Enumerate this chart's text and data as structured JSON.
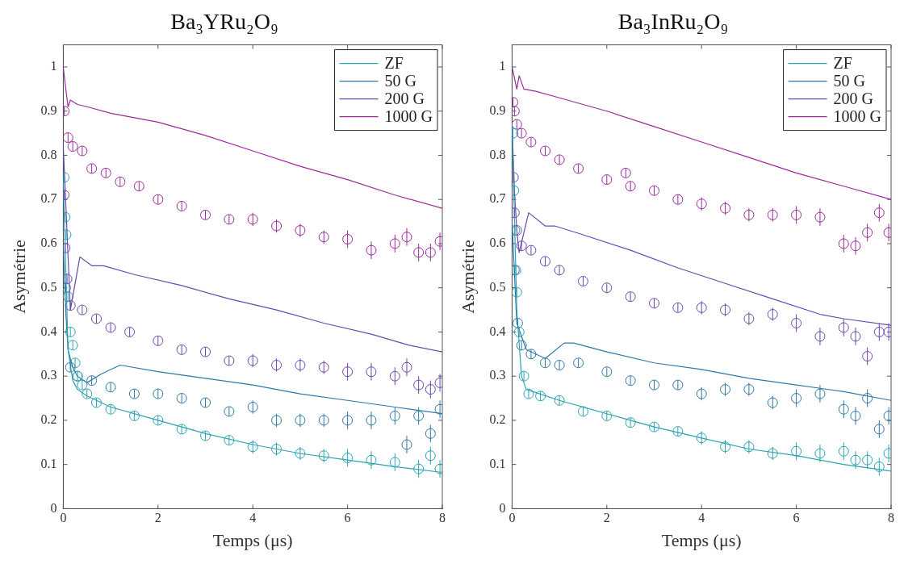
{
  "chart_data": [
    {
      "type": "line",
      "title": "Ba₃YRu₂O₉",
      "xlabel": "Temps (μs)",
      "ylabel": "Asymétrie",
      "xlim": [
        0,
        8
      ],
      "xticks": [
        0,
        2,
        4,
        6,
        8
      ],
      "ylim": [
        0,
        1.05
      ],
      "yticks": [
        0,
        0.1,
        0.2,
        0.3,
        0.4,
        0.5,
        0.6,
        0.7,
        0.8,
        0.9,
        1
      ],
      "grid": false,
      "legend": "top right",
      "series": [
        {
          "name": "ZF",
          "type": "line",
          "marker": "none",
          "color": "#2aa3b3",
          "x": [
            0,
            0.1,
            0.2,
            0.3,
            0.5,
            1,
            2,
            3,
            4,
            5,
            6,
            7,
            8
          ],
          "values": [
            0.75,
            0.36,
            0.29,
            0.27,
            0.255,
            0.23,
            0.2,
            0.17,
            0.145,
            0.125,
            0.11,
            0.095,
            0.082
          ]
        },
        {
          "name": "50 G",
          "type": "line",
          "marker": "none",
          "color": "#2f78a8",
          "x": [
            0,
            0.05,
            0.1,
            0.2,
            0.3,
            0.5,
            0.8,
            1.2,
            2,
            3,
            4,
            5,
            6,
            7,
            8
          ],
          "values": [
            0.6,
            0.45,
            0.36,
            0.32,
            0.3,
            0.285,
            0.305,
            0.325,
            0.31,
            0.295,
            0.28,
            0.26,
            0.245,
            0.23,
            0.215
          ]
        },
        {
          "name": "200 G",
          "type": "line",
          "marker": "none",
          "color": "#6a48b0",
          "x": [
            0,
            0.15,
            0.35,
            0.6,
            0.85,
            1.5,
            2.5,
            3.5,
            4.5,
            5.5,
            6.5,
            7.3,
            8
          ],
          "values": [
            0.82,
            0.45,
            0.57,
            0.55,
            0.55,
            0.53,
            0.505,
            0.475,
            0.45,
            0.42,
            0.395,
            0.37,
            0.355
          ]
        },
        {
          "name": "1000 G",
          "type": "line",
          "marker": "none",
          "color": "#9b2a9e",
          "x": [
            0,
            0.03,
            0.1,
            0.15,
            0.3,
            0.5,
            1,
            2,
            3,
            4,
            5,
            6,
            7,
            8
          ],
          "values": [
            1.0,
            0.97,
            0.91,
            0.925,
            0.915,
            0.91,
            0.895,
            0.875,
            0.845,
            0.81,
            0.775,
            0.745,
            0.71,
            0.68
          ]
        },
        {
          "type": "scatter",
          "marker": "circle",
          "color": "#2aa3b3",
          "x": [
            0.02,
            0.04,
            0.06,
            0.1,
            0.15,
            0.2,
            0.25,
            0.3,
            0.4,
            0.5,
            0.7,
            1,
            1.5,
            2,
            2.5,
            3,
            3.5,
            4,
            4.5,
            5,
            5.5,
            6,
            6.5,
            7,
            7.5,
            7.75,
            7.95
          ],
          "values": [
            0.75,
            0.66,
            0.62,
            0.48,
            0.4,
            0.37,
            0.33,
            0.3,
            0.28,
            0.26,
            0.24,
            0.225,
            0.21,
            0.2,
            0.18,
            0.165,
            0.155,
            0.14,
            0.135,
            0.125,
            0.12,
            0.115,
            0.11,
            0.105,
            0.09,
            0.12,
            0.09
          ],
          "errors": [
            0.01,
            0.01,
            0.01,
            0.01,
            0.01,
            0.01,
            0.01,
            0.01,
            0.01,
            0.01,
            0.01,
            0.01,
            0.01,
            0.01,
            0.01,
            0.01,
            0.01,
            0.015,
            0.015,
            0.015,
            0.015,
            0.02,
            0.02,
            0.02,
            0.02,
            0.02,
            0.02
          ]
        },
        {
          "type": "scatter",
          "marker": "circle",
          "color": "#2f78a8",
          "x": [
            0.05,
            0.15,
            0.3,
            0.6,
            1,
            1.5,
            2,
            2.5,
            3,
            3.5,
            4,
            4.5,
            5,
            5.5,
            6,
            6.5,
            7,
            7.25,
            7.5,
            7.75,
            7.95
          ],
          "values": [
            0.5,
            0.32,
            0.3,
            0.29,
            0.275,
            0.26,
            0.26,
            0.25,
            0.24,
            0.22,
            0.23,
            0.2,
            0.2,
            0.2,
            0.2,
            0.2,
            0.21,
            0.145,
            0.21,
            0.17,
            0.225
          ],
          "errors": [
            0.01,
            0.01,
            null,
            0.01,
            0.01,
            0.01,
            0.01,
            0.01,
            0.01,
            0.01,
            0.015,
            0.015,
            0.015,
            0.015,
            0.02,
            0.02,
            0.02,
            0.02,
            0.02,
            0.02,
            0.02
          ]
        },
        {
          "type": "scatter",
          "marker": "circle",
          "color": "#6a48b0",
          "x": [
            0.02,
            0.04,
            0.08,
            0.15,
            0.4,
            0.7,
            1,
            1.4,
            2,
            2.5,
            3,
            3.5,
            4,
            4.5,
            5,
            5.5,
            6,
            6.5,
            7,
            7.25,
            7.5,
            7.75,
            7.95
          ],
          "values": [
            0.71,
            0.59,
            0.52,
            0.46,
            0.45,
            0.43,
            0.41,
            0.4,
            0.38,
            0.36,
            0.355,
            0.335,
            0.335,
            0.325,
            0.325,
            0.32,
            0.31,
            0.31,
            0.3,
            0.32,
            0.28,
            0.27,
            0.285
          ],
          "errors": [
            0.01,
            0.01,
            0.01,
            0.01,
            0.01,
            0.01,
            0.01,
            0.01,
            0.01,
            0.01,
            0.01,
            0.01,
            0.015,
            0.015,
            0.015,
            0.015,
            0.02,
            0.02,
            0.02,
            0.02,
            0.02,
            0.02,
            0.02
          ]
        },
        {
          "type": "scatter",
          "marker": "circle",
          "color": "#9b2a9e",
          "x": [
            0.02,
            0.1,
            0.2,
            0.4,
            0.6,
            0.9,
            1.2,
            1.6,
            2,
            2.5,
            3,
            3.5,
            4,
            4.5,
            5,
            5.5,
            6,
            6.5,
            7,
            7.25,
            7.5,
            7.75,
            7.95
          ],
          "values": [
            0.9,
            0.84,
            0.82,
            0.81,
            0.77,
            0.76,
            0.74,
            0.73,
            0.7,
            0.685,
            0.665,
            0.655,
            0.655,
            0.64,
            0.63,
            0.615,
            0.61,
            0.585,
            0.6,
            0.615,
            0.58,
            0.58,
            0.605
          ],
          "errors": [
            0.01,
            0.01,
            0.01,
            0.01,
            0.01,
            0.01,
            0.01,
            0.01,
            0.01,
            0.01,
            0.01,
            0.01,
            0.015,
            0.015,
            0.015,
            0.015,
            0.02,
            0.02,
            0.02,
            0.02,
            0.02,
            0.02,
            0.02
          ]
        }
      ]
    },
    {
      "type": "line",
      "title": "Ba₃InRu₂O₉",
      "xlabel": "Temps (μs)",
      "ylabel": "Asymétrie",
      "xlim": [
        0,
        8
      ],
      "xticks": [
        0,
        2,
        4,
        6,
        8
      ],
      "ylim": [
        0,
        1.05
      ],
      "yticks": [
        0,
        0.1,
        0.2,
        0.3,
        0.4,
        0.5,
        0.6,
        0.7,
        0.8,
        0.9,
        1
      ],
      "grid": false,
      "legend": "top right",
      "series": [
        {
          "name": "ZF",
          "type": "line",
          "marker": "none",
          "color": "#2aa3b3",
          "x": [
            0,
            0.1,
            0.2,
            0.3,
            1,
            2,
            3,
            4,
            5,
            6,
            7,
            8
          ],
          "values": [
            0.87,
            0.45,
            0.3,
            0.27,
            0.245,
            0.215,
            0.185,
            0.16,
            0.135,
            0.12,
            0.1,
            0.085
          ]
        },
        {
          "name": "50 G",
          "type": "line",
          "marker": "none",
          "color": "#2f78a8",
          "x": [
            0,
            0.1,
            0.3,
            0.7,
            1.1,
            1.3,
            2,
            3,
            4,
            5,
            6,
            7,
            8
          ],
          "values": [
            0.65,
            0.42,
            0.36,
            0.34,
            0.375,
            0.375,
            0.355,
            0.33,
            0.315,
            0.295,
            0.28,
            0.265,
            0.245
          ]
        },
        {
          "name": "200 G",
          "type": "line",
          "marker": "none",
          "color": "#6a48b0",
          "x": [
            0,
            0.05,
            0.1,
            0.15,
            0.35,
            0.7,
            0.9,
            1.5,
            2.5,
            3.5,
            4.5,
            5.5,
            6.5,
            7,
            8
          ],
          "values": [
            0.87,
            0.72,
            0.63,
            0.58,
            0.67,
            0.64,
            0.64,
            0.62,
            0.585,
            0.545,
            0.51,
            0.475,
            0.44,
            0.43,
            0.415
          ]
        },
        {
          "name": "1000 G",
          "type": "line",
          "marker": "none",
          "color": "#9b2a9e",
          "x": [
            0,
            0.1,
            0.15,
            0.25,
            0.5,
            1,
            2,
            3,
            4,
            5,
            6,
            7,
            8
          ],
          "values": [
            1.0,
            0.95,
            0.98,
            0.95,
            0.945,
            0.93,
            0.9,
            0.865,
            0.83,
            0.795,
            0.76,
            0.73,
            0.7
          ]
        },
        {
          "type": "scatter",
          "marker": "circle",
          "color": "#2aa3b3",
          "x": [
            0.02,
            0.04,
            0.06,
            0.08,
            0.1,
            0.15,
            0.25,
            0.35,
            0.6,
            1,
            1.5,
            2,
            2.5,
            3,
            3.5,
            4,
            4.5,
            5,
            5.5,
            6,
            6.5,
            7,
            7.25,
            7.5,
            7.75,
            7.95
          ],
          "values": [
            0.85,
            0.72,
            0.63,
            0.54,
            0.49,
            0.4,
            0.3,
            0.26,
            0.255,
            0.245,
            0.22,
            0.21,
            0.195,
            0.185,
            0.175,
            0.16,
            0.14,
            0.14,
            0.125,
            0.13,
            0.125,
            0.13,
            0.11,
            0.11,
            0.095,
            0.125
          ],
          "errors": [
            0.01,
            0.01,
            0.01,
            0.01,
            0.01,
            0.01,
            0.01,
            0.01,
            0.01,
            0.01,
            0.01,
            0.01,
            0.01,
            0.01,
            0.01,
            0.015,
            0.015,
            0.015,
            0.015,
            0.02,
            0.02,
            0.02,
            0.02,
            0.02,
            0.02,
            0.02
          ]
        },
        {
          "type": "scatter",
          "marker": "circle",
          "color": "#2f78a8",
          "x": [
            0.05,
            0.12,
            0.2,
            0.4,
            0.7,
            1,
            1.4,
            2,
            2.5,
            3,
            3.5,
            4,
            4.5,
            5,
            5.5,
            6,
            6.5,
            7,
            7.25,
            7.5,
            7.75,
            7.95
          ],
          "values": [
            0.54,
            0.42,
            0.37,
            0.35,
            0.33,
            0.325,
            0.33,
            0.31,
            0.29,
            0.28,
            0.28,
            0.26,
            0.27,
            0.27,
            0.24,
            0.25,
            0.26,
            0.225,
            0.21,
            0.25,
            0.18,
            0.21
          ],
          "errors": [
            0.01,
            0.01,
            0.01,
            0.01,
            0.01,
            0.01,
            0.01,
            0.01,
            0.01,
            0.01,
            0.01,
            0.015,
            0.015,
            0.015,
            0.015,
            0.02,
            0.02,
            0.02,
            0.02,
            0.02,
            0.02,
            0.02
          ]
        },
        {
          "type": "scatter",
          "marker": "circle",
          "color": "#6a48b0",
          "x": [
            0.03,
            0.05,
            0.1,
            0.2,
            0.4,
            0.7,
            1,
            1.5,
            2,
            2.5,
            3,
            3.5,
            4,
            4.5,
            5,
            5.5,
            6,
            6.5,
            7,
            7.25,
            7.5,
            7.75,
            7.95
          ],
          "values": [
            0.75,
            0.67,
            0.63,
            0.595,
            0.585,
            0.56,
            0.54,
            0.515,
            0.5,
            0.48,
            0.465,
            0.455,
            0.455,
            0.45,
            0.43,
            0.44,
            0.42,
            0.39,
            0.41,
            0.39,
            0.345,
            0.4,
            0.4
          ],
          "errors": [
            0.01,
            0.01,
            null,
            0.01,
            0.01,
            0.01,
            0.01,
            0.01,
            0.01,
            0.01,
            0.01,
            0.01,
            0.015,
            0.015,
            0.015,
            0.015,
            0.02,
            0.02,
            0.02,
            0.02,
            0.02,
            0.02,
            0.02
          ]
        },
        {
          "type": "scatter",
          "marker": "circle",
          "color": "#9b2a9e",
          "x": [
            0.02,
            0.05,
            0.1,
            0.2,
            0.4,
            0.7,
            1,
            1.4,
            2,
            2.4,
            2.5,
            3,
            3.5,
            4,
            4.5,
            5,
            5.5,
            6,
            6.5,
            7,
            7.25,
            7.5,
            7.75,
            7.95
          ],
          "values": [
            0.92,
            0.9,
            0.87,
            0.85,
            0.83,
            0.81,
            0.79,
            0.77,
            0.745,
            0.76,
            0.73,
            0.72,
            0.7,
            0.69,
            0.68,
            0.665,
            0.665,
            0.665,
            0.66,
            0.6,
            0.595,
            0.625,
            0.67,
            0.625
          ],
          "errors": [
            0.01,
            0.01,
            0.01,
            0.01,
            0.01,
            0.01,
            0.01,
            0.01,
            0.01,
            0.01,
            0.01,
            0.01,
            0.01,
            0.015,
            0.015,
            0.015,
            0.015,
            0.02,
            0.02,
            0.02,
            0.02,
            0.02,
            0.02,
            0.02
          ]
        }
      ]
    }
  ]
}
